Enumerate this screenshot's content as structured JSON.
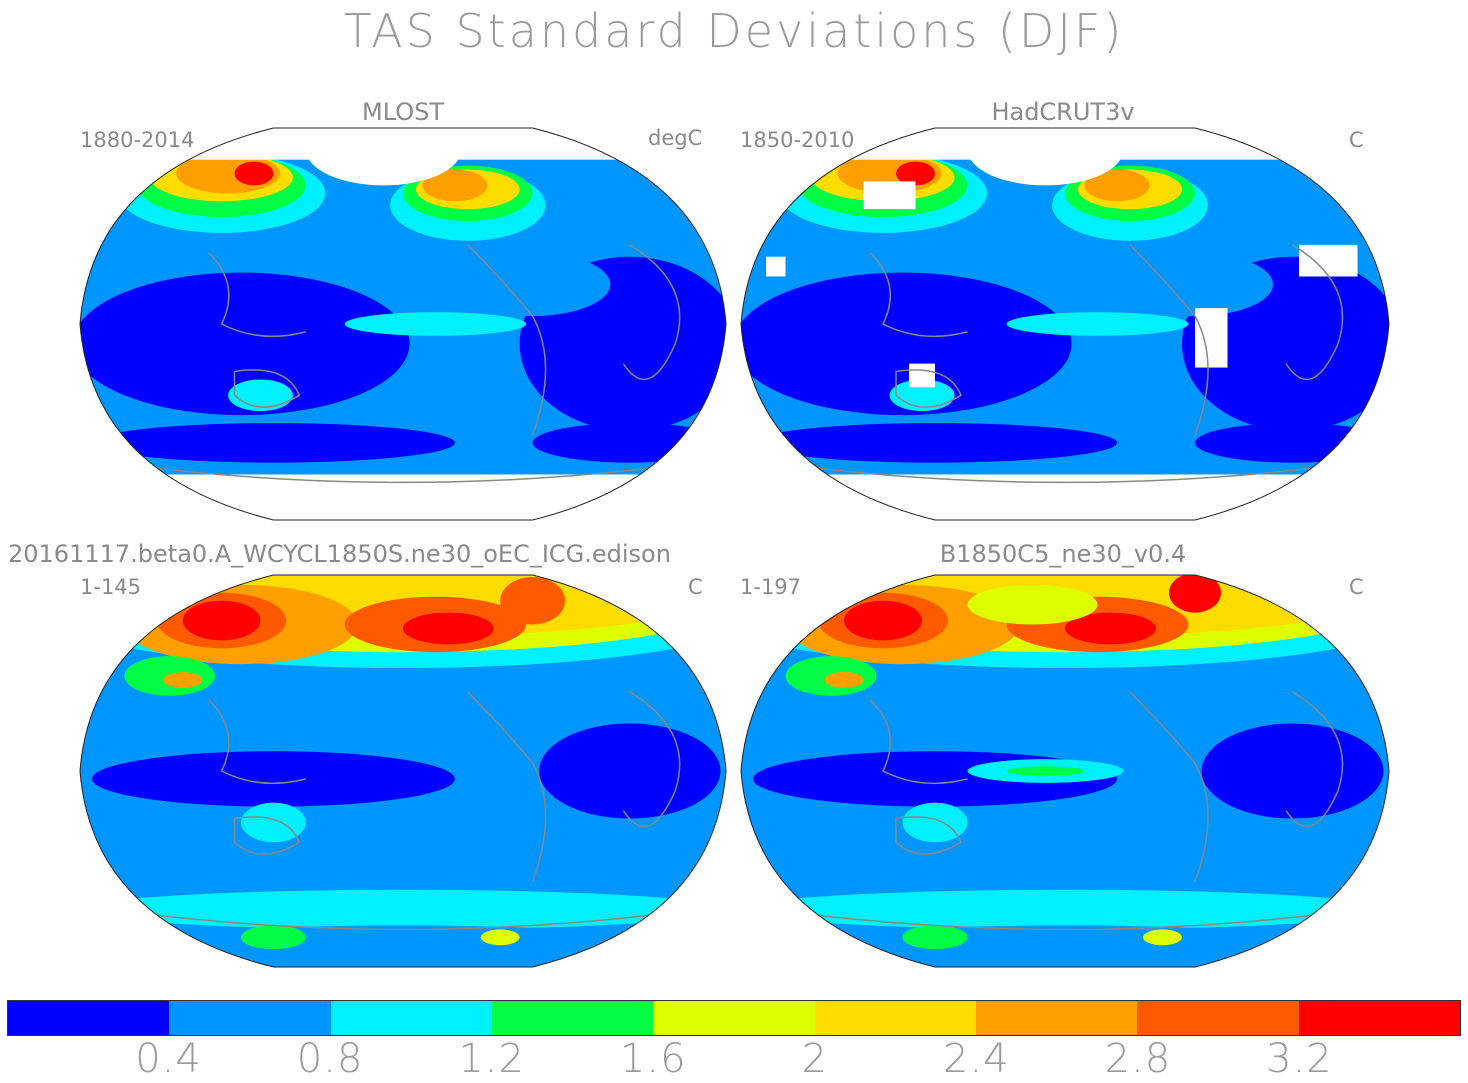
{
  "title": "TAS Standard Deviations (DJF)",
  "panels": [
    {
      "title": "MLOST",
      "period": "1880-2014",
      "units": "degC",
      "variant": "obs1"
    },
    {
      "title": "HadCRUT3v",
      "period": "1850-2010",
      "units": "C",
      "variant": "obs2"
    },
    {
      "title": "20161117.beta0.A_WCYCL1850S.ne30_oEC_ICG.edison",
      "period": "1-145",
      "units": "C",
      "variant": "model1"
    },
    {
      "title": "B1850C5_ne30_v0.4",
      "period": "1-197",
      "units": "C",
      "variant": "model2"
    }
  ],
  "colorbar": {
    "colors": [
      "#0000ff",
      "#0096ff",
      "#00f0ff",
      "#00ff44",
      "#ddff00",
      "#ffdc00",
      "#ff9f00",
      "#ff5a00",
      "#ff0000"
    ],
    "labels": [
      "0.4",
      "0.8",
      "1.2",
      "1.6",
      "2",
      "2.4",
      "2.8",
      "3.2"
    ]
  },
  "palette": {
    "deep_blue": "#0000ff",
    "mid_blue": "#0096ff",
    "cyan": "#00f0ff",
    "green": "#00ff44",
    "yellow": "#ddff00",
    "gold": "#ffdc00",
    "orange": "#ff9f00",
    "dark_orange": "#ff5a00",
    "red": "#ff0000",
    "coastline": "#888888"
  }
}
